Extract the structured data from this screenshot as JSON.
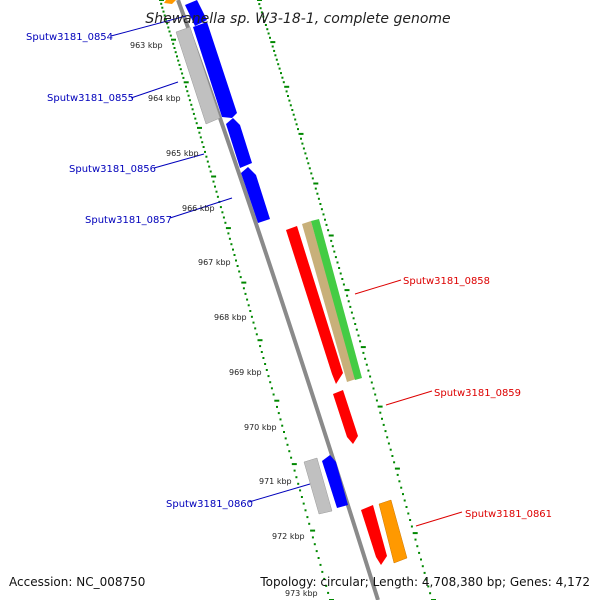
{
  "title": "Shewanella sp. W3-18-1, complete genome",
  "footer": {
    "accession": "Accession: NC_008750",
    "summary": "Topology: circular; Length: 4,708,380 bp; Genes: 4,172"
  },
  "colors": {
    "forward_cds": "#0000ff",
    "reverse_cds": "#ff0000",
    "forward_label": "#0000bb",
    "reverse_label": "#dd0000",
    "backbone": "#888888",
    "tick": "#008800",
    "grey_feature": "#bbbbbb",
    "green_feature": "#44cc44",
    "tan_feature": "#c8b07a",
    "orange_feature": "#ff9900"
  },
  "kbp_ticks": [
    "963 kbp",
    "964 kbp",
    "965 kbp",
    "966 kbp",
    "967 kbp",
    "968 kbp",
    "969 kbp",
    "970 kbp",
    "971 kbp",
    "972 kbp",
    "973 kbp"
  ],
  "gene_labels": [
    {
      "text": "Sputw3181_0854",
      "strand": "forward"
    },
    {
      "text": "Sputw3181_0855",
      "strand": "forward"
    },
    {
      "text": "Sputw3181_0856",
      "strand": "forward"
    },
    {
      "text": "Sputw3181_0857",
      "strand": "forward"
    },
    {
      "text": "Sputw3181_0858",
      "strand": "reverse"
    },
    {
      "text": "Sputw3181_0859",
      "strand": "reverse"
    },
    {
      "text": "Sputw3181_0860",
      "strand": "forward"
    },
    {
      "text": "Sputw3181_0861",
      "strand": "reverse"
    }
  ]
}
